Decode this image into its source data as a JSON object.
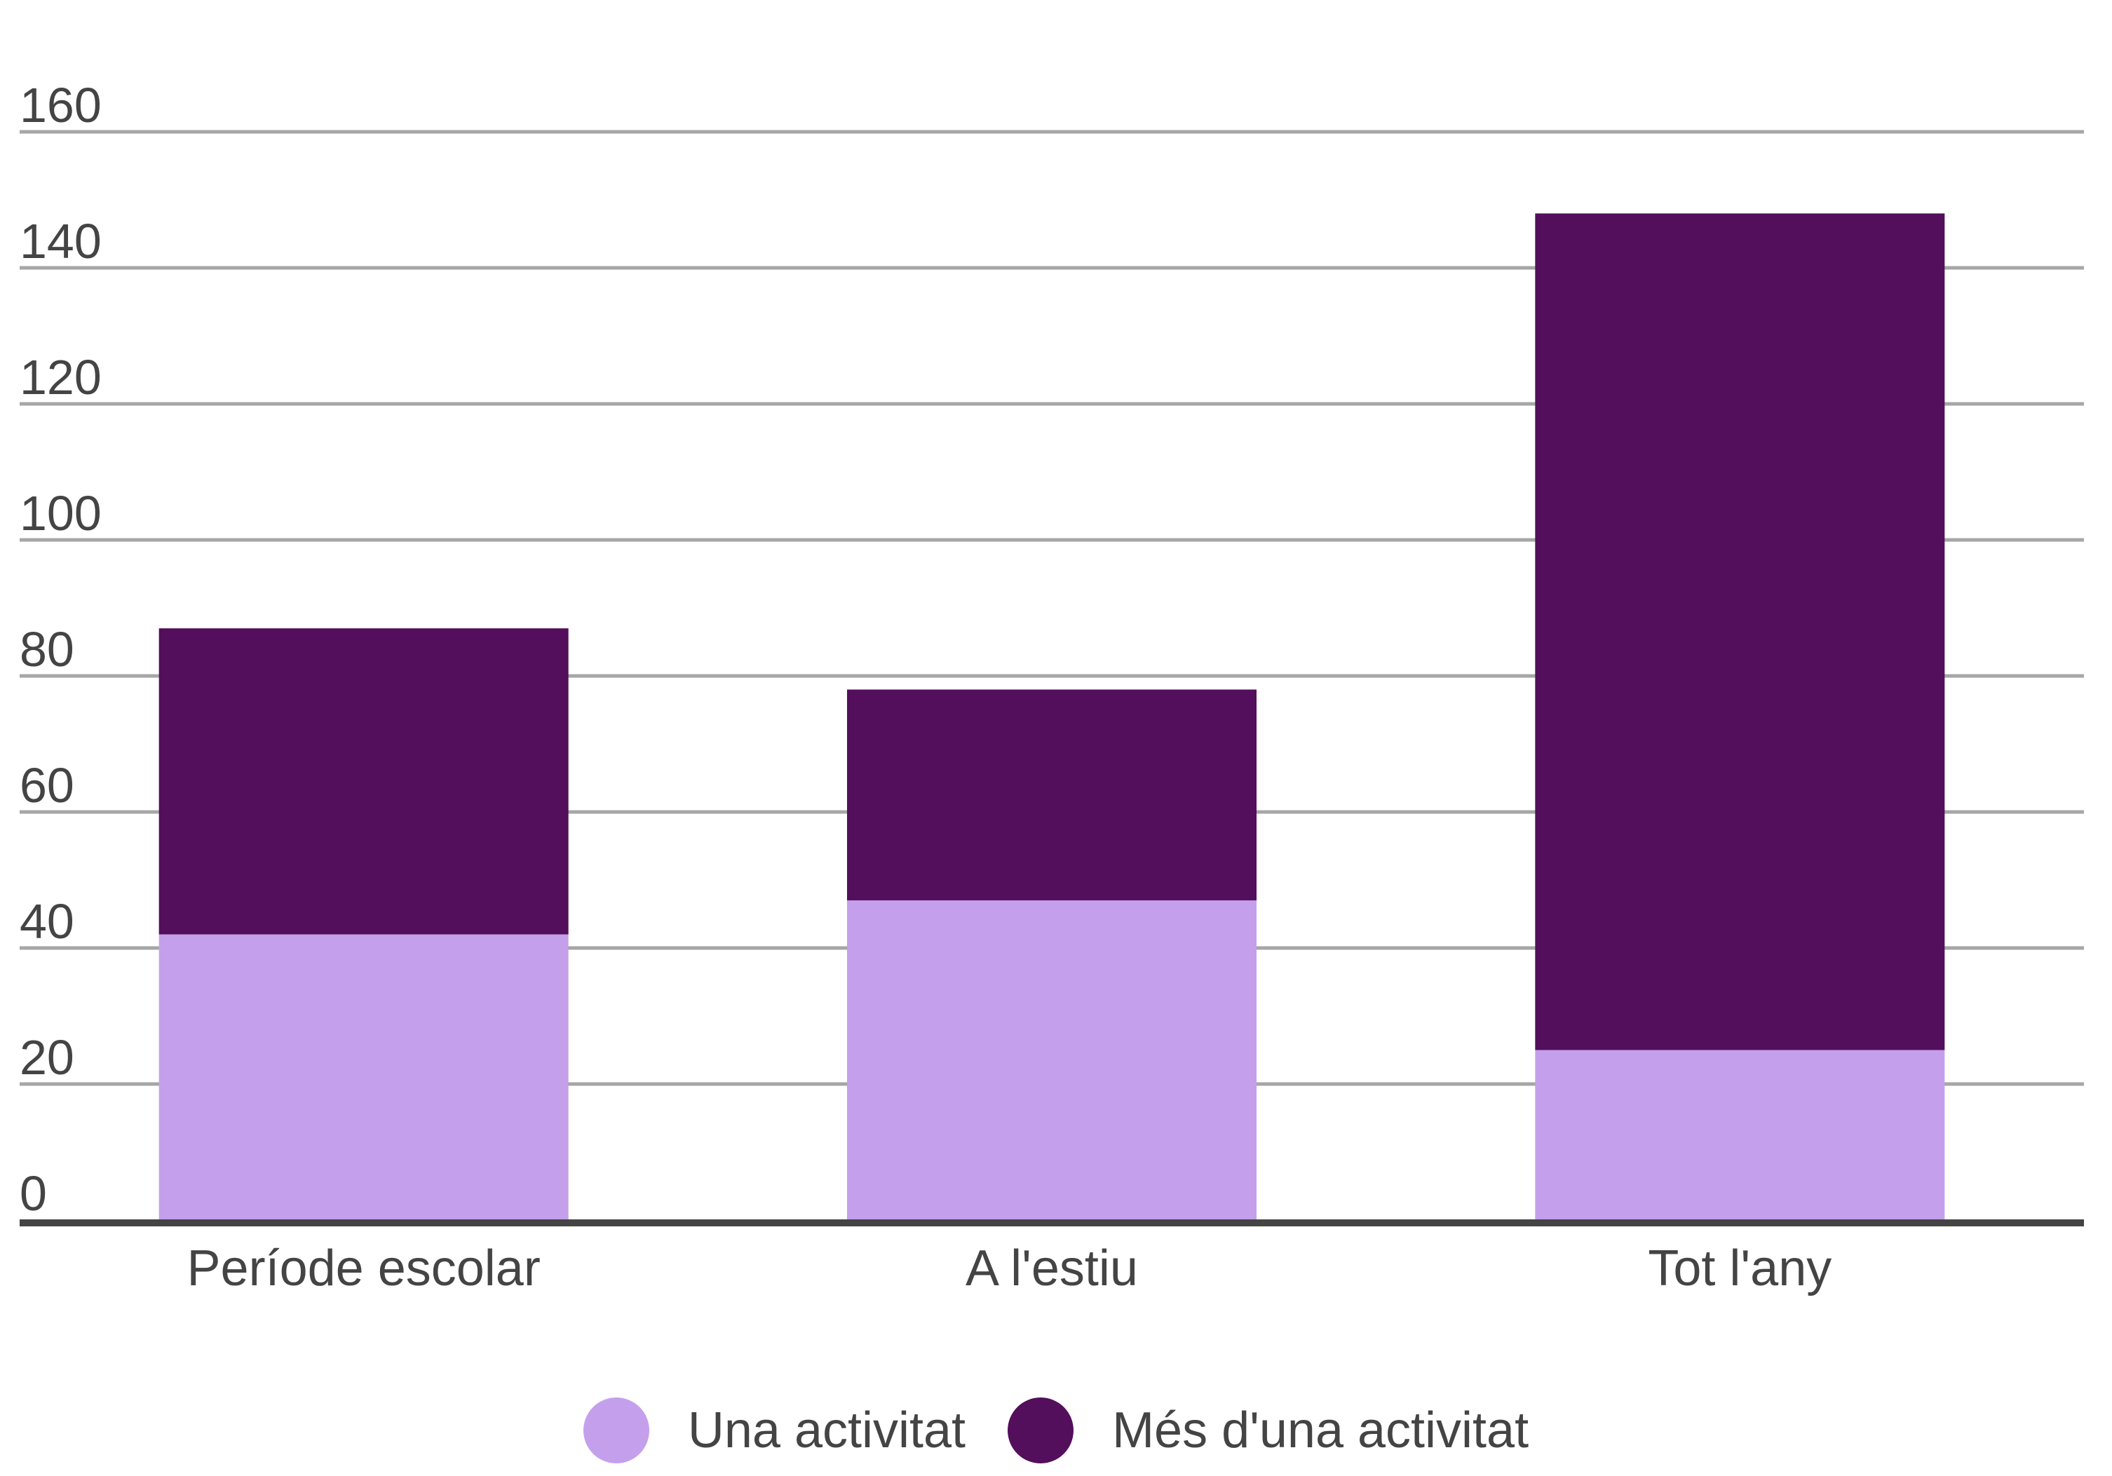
{
  "chart_data": {
    "type": "bar",
    "stacked": true,
    "categories": [
      "Període escolar",
      "A l'estiu",
      "Tot l'any"
    ],
    "series": [
      {
        "name": "Una activitat",
        "values": [
          42,
          47,
          25
        ],
        "color": "#c4a0ec"
      },
      {
        "name": "Més d'una activitat",
        "values": [
          45,
          31,
          123
        ],
        "color": "#530e5c"
      }
    ],
    "y_ticks": [
      0,
      20,
      40,
      60,
      80,
      100,
      120,
      140,
      160
    ],
    "ylim": [
      0,
      160
    ],
    "grid": true,
    "legend_position": "bottom-center",
    "title": "",
    "xlabel": "",
    "ylabel": ""
  }
}
